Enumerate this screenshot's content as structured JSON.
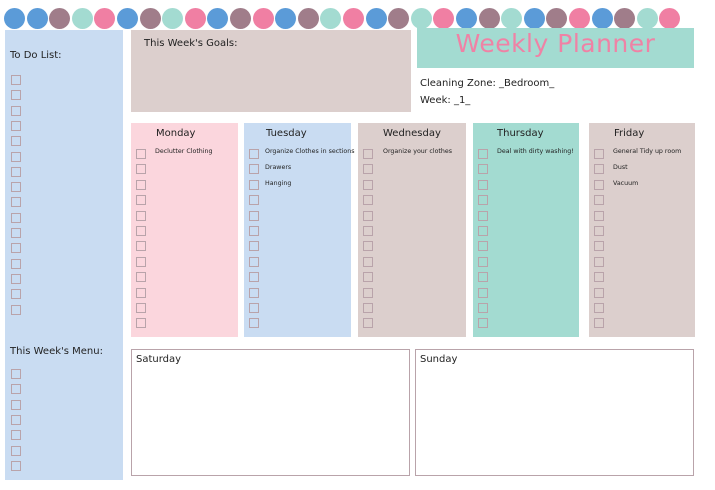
{
  "colors": {
    "pink": "#f07fa3",
    "blue": "#5b9bd8",
    "mint": "#a3dbd1",
    "mauve": "#a07d8a",
    "light_blue": "#c9dcf2",
    "light_pink": "#fbd6dd",
    "light_mauve": "#dccfcd",
    "checkbox_border": "#b9a3aa"
  },
  "dots": [
    "blue",
    "blue",
    "mauve",
    "mint",
    "pink",
    "blue",
    "mauve",
    "mint",
    "pink",
    "blue",
    "mauve",
    "pink",
    "blue",
    "mauve",
    "mint",
    "pink",
    "blue",
    "mauve",
    "mint",
    "pink",
    "blue",
    "mauve",
    "mint",
    "blue",
    "mauve",
    "pink",
    "blue",
    "mauve",
    "mint",
    "pink"
  ],
  "header": {
    "title": "Weekly Planner",
    "cleaning_zone": "Cleaning Zone: _Bedroom_",
    "week": "Week: _1_"
  },
  "todo": {
    "label": "To Do List:"
  },
  "goals": {
    "label": "This Week's Goals:"
  },
  "menu": {
    "label": "This Week's Menu:"
  },
  "days": [
    {
      "name": "Monday",
      "tasks": [
        "Declutter Clothing"
      ]
    },
    {
      "name": "Tuesday",
      "tasks": [
        "Organize Clothes in sections",
        "Drawers",
        "Hanging"
      ]
    },
    {
      "name": "Wednesday",
      "tasks": [
        "Organize your clothes"
      ]
    },
    {
      "name": "Thursday",
      "tasks": [
        "Deal with dirty washing!"
      ]
    },
    {
      "name": "Friday",
      "tasks": [
        "General Tidy up room",
        "Dust",
        "Vacuum"
      ]
    }
  ],
  "weekend": [
    {
      "name": "Saturday"
    },
    {
      "name": "Sunday"
    }
  ]
}
